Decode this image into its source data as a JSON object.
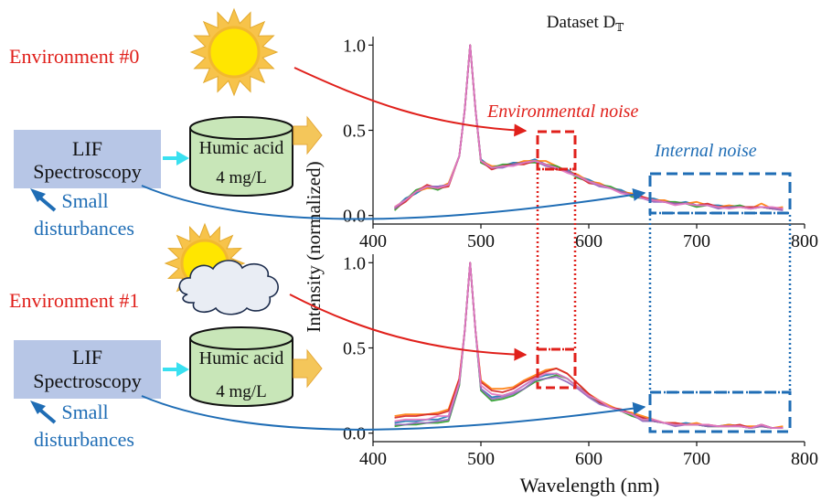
{
  "title": "Dataset D",
  "title_subscript": "𝕋",
  "environments": [
    {
      "label": "Environment #0",
      "source_icon": "sun-icon",
      "instrument": {
        "line1": "LIF",
        "line2": "Spectroscopy"
      },
      "disturbance": {
        "line1": "Small",
        "line2": "disturbances"
      },
      "sample": {
        "name": "Humic acid",
        "concentration": "4 mg/L"
      }
    },
    {
      "label": "Environment #1",
      "source_icon": "sun-behind-cloud-icon",
      "instrument": {
        "line1": "LIF",
        "line2": "Spectroscopy"
      },
      "disturbance": {
        "line1": "Small",
        "line2": "disturbances"
      },
      "sample": {
        "name": "Humic acid",
        "concentration": "4 mg/L"
      }
    }
  ],
  "annotations": {
    "environmental_noise": "Environmental noise",
    "internal_noise": "Internal noise"
  },
  "colors": {
    "env_red": "#e0201b",
    "blue": "#1f6db5",
    "box_fill": "#b7c6e6",
    "can_fill": "#c8e6b8",
    "arrow_cyan": "#39e0f0",
    "arrow_gold": "#f4c65a",
    "sun": "#ffe600",
    "sun_rays": "#f7c34a"
  },
  "chart_data": [
    {
      "type": "line",
      "panel": "top",
      "xlabel": "Wavelength (nm)",
      "ylabel": "Intensity (normalized)",
      "xlim": [
        400,
        800
      ],
      "ylim": [
        -0.05,
        1.05
      ],
      "xticks": [
        "400",
        "500",
        "600",
        "700",
        "800"
      ],
      "yticks": [
        "0.0",
        "0.5",
        "1.0"
      ],
      "x": [
        420,
        430,
        440,
        450,
        460,
        470,
        480,
        485,
        490,
        495,
        500,
        510,
        520,
        530,
        540,
        550,
        560,
        570,
        580,
        590,
        600,
        610,
        620,
        630,
        640,
        650,
        660,
        670,
        680,
        690,
        700,
        710,
        720,
        730,
        740,
        750,
        760,
        770,
        780
      ],
      "base": [
        0.04,
        0.09,
        0.14,
        0.17,
        0.16,
        0.18,
        0.35,
        0.62,
        1.0,
        0.62,
        0.32,
        0.28,
        0.29,
        0.3,
        0.31,
        0.32,
        0.3,
        0.28,
        0.26,
        0.23,
        0.2,
        0.18,
        0.16,
        0.14,
        0.12,
        0.1,
        0.09,
        0.08,
        0.07,
        0.07,
        0.06,
        0.06,
        0.05,
        0.05,
        0.05,
        0.04,
        0.05,
        0.04,
        0.04
      ],
      "series": [
        {
          "color": "#1f77b4",
          "offsets": [
            0.0,
            0.01,
            -0.01,
            0.0,
            0.01,
            0.0,
            0.0,
            0.0,
            0.0,
            0.0,
            0.01,
            0.0,
            0.0,
            0.01,
            0.0,
            0.01,
            0.0,
            0.0,
            0.01,
            0.0,
            0.01,
            0.0,
            0.0,
            0.01,
            0.0,
            0.0,
            0.01,
            0.0,
            0.0,
            0.01,
            0.0,
            0.0,
            0.01,
            0.0,
            0.0,
            0.01,
            0.0,
            0.0,
            0.0
          ]
        },
        {
          "color": "#ff7f0e",
          "offsets": [
            0.01,
            0.0,
            0.0,
            -0.01,
            0.0,
            0.01,
            0.0,
            0.0,
            0.0,
            0.0,
            0.0,
            0.01,
            0.0,
            0.0,
            0.01,
            0.0,
            0.02,
            0.01,
            0.0,
            0.01,
            0.0,
            0.01,
            0.0,
            0.0,
            0.01,
            0.0,
            0.0,
            0.01,
            0.0,
            0.0,
            0.02,
            0.0,
            0.0,
            0.01,
            0.0,
            0.0,
            0.02,
            0.0,
            0.01
          ]
        },
        {
          "color": "#2ca02c",
          "offsets": [
            -0.01,
            0.0,
            0.01,
            0.0,
            -0.01,
            0.0,
            0.0,
            0.0,
            0.0,
            0.0,
            -0.01,
            0.0,
            0.01,
            0.0,
            0.0,
            -0.01,
            0.0,
            0.01,
            0.0,
            -0.01,
            0.0,
            0.0,
            0.01,
            0.0,
            -0.01,
            0.0,
            0.0,
            0.0,
            0.01,
            0.0,
            -0.01,
            0.0,
            0.0,
            0.0,
            0.01,
            0.0,
            0.0,
            0.0,
            0.0
          ]
        },
        {
          "color": "#d62728",
          "offsets": [
            0.0,
            -0.01,
            0.0,
            0.01,
            0.0,
            -0.01,
            0.0,
            0.0,
            0.0,
            0.0,
            0.0,
            -0.01,
            0.0,
            0.0,
            -0.01,
            0.0,
            0.0,
            -0.01,
            0.0,
            0.0,
            -0.01,
            0.0,
            0.0,
            0.0,
            0.0,
            0.01,
            0.0,
            0.0,
            0.0,
            0.0,
            0.0,
            0.01,
            0.0,
            0.0,
            0.0,
            0.01,
            0.0,
            0.0,
            0.0
          ]
        },
        {
          "color": "#9467bd",
          "offsets": [
            0.0,
            0.0,
            0.0,
            0.0,
            0.01,
            0.0,
            0.0,
            0.0,
            0.0,
            0.0,
            0.0,
            0.0,
            -0.01,
            0.0,
            0.0,
            0.0,
            -0.01,
            0.0,
            0.0,
            0.0,
            0.0,
            -0.01,
            0.0,
            0.0,
            0.0,
            0.0,
            -0.01,
            0.0,
            0.0,
            0.0,
            0.0,
            0.0,
            -0.01,
            0.0,
            0.0,
            0.0,
            0.0,
            0.0,
            -0.01
          ]
        },
        {
          "color": "#e377c2",
          "offsets": [
            0.01,
            0.0,
            0.0,
            0.0,
            0.0,
            0.0,
            0.0,
            0.0,
            0.0,
            0.0,
            0.0,
            0.0,
            0.0,
            -0.01,
            0.0,
            0.0,
            0.0,
            0.0,
            -0.01,
            0.0,
            0.0,
            0.0,
            0.0,
            -0.01,
            0.0,
            0.0,
            0.0,
            0.0,
            -0.01,
            0.0,
            0.0,
            0.0,
            0.0,
            -0.01,
            0.0,
            0.0,
            0.0,
            0.01,
            0.0
          ]
        }
      ]
    },
    {
      "type": "line",
      "panel": "bottom",
      "xlabel": "Wavelength (nm)",
      "ylabel": "Intensity (normalized)",
      "xlim": [
        400,
        800
      ],
      "ylim": [
        -0.05,
        1.05
      ],
      "xticks": [
        "400",
        "500",
        "600",
        "700",
        "800"
      ],
      "yticks": [
        "0.0",
        "0.5",
        "1.0"
      ],
      "x": [
        420,
        430,
        440,
        450,
        460,
        470,
        480,
        485,
        490,
        495,
        500,
        510,
        520,
        530,
        540,
        550,
        560,
        570,
        580,
        590,
        600,
        610,
        620,
        630,
        640,
        650,
        660,
        670,
        680,
        690,
        700,
        710,
        720,
        730,
        740,
        750,
        760,
        770,
        780
      ],
      "base": [
        0.07,
        0.07,
        0.08,
        0.08,
        0.09,
        0.1,
        0.3,
        0.6,
        1.0,
        0.6,
        0.28,
        0.22,
        0.22,
        0.24,
        0.28,
        0.32,
        0.34,
        0.35,
        0.32,
        0.27,
        0.22,
        0.18,
        0.15,
        0.13,
        0.11,
        0.08,
        0.07,
        0.06,
        0.05,
        0.05,
        0.05,
        0.04,
        0.04,
        0.04,
        0.04,
        0.03,
        0.04,
        0.03,
        0.03
      ],
      "series": [
        {
          "color": "#1f77b4",
          "offsets": [
            -0.01,
            0.0,
            -0.01,
            0.0,
            -0.01,
            0.0,
            0.0,
            0.0,
            0.0,
            0.0,
            -0.02,
            -0.01,
            0.0,
            0.0,
            0.0,
            0.0,
            0.0,
            0.0,
            0.0,
            0.0,
            0.01,
            0.0,
            0.0,
            0.0,
            0.0,
            0.01,
            0.0,
            0.0,
            0.0,
            0.01,
            0.0,
            0.0,
            0.0,
            0.01,
            0.0,
            0.0,
            0.01,
            0.0,
            0.0
          ]
        },
        {
          "color": "#ff7f0e",
          "offsets": [
            0.03,
            0.04,
            0.03,
            0.03,
            0.03,
            0.04,
            0.02,
            0.0,
            0.0,
            0.0,
            0.03,
            0.04,
            0.04,
            0.03,
            0.03,
            0.02,
            0.03,
            0.03,
            0.03,
            0.02,
            0.01,
            0.01,
            0.01,
            0.0,
            0.01,
            0.02,
            0.01,
            0.0,
            0.01,
            0.0,
            0.01,
            0.0,
            0.0,
            0.01,
            0.0,
            0.01,
            0.0,
            0.0,
            0.01
          ]
        },
        {
          "color": "#2ca02c",
          "offsets": [
            -0.03,
            -0.02,
            -0.03,
            -0.02,
            -0.03,
            -0.03,
            -0.02,
            0.0,
            0.0,
            0.0,
            -0.03,
            -0.03,
            -0.02,
            -0.02,
            -0.02,
            -0.02,
            -0.02,
            -0.01,
            0.0,
            0.0,
            0.0,
            0.0,
            0.0,
            0.0,
            -0.01,
            0.0,
            0.0,
            0.0,
            0.0,
            0.0,
            0.0,
            0.0,
            0.0,
            0.0,
            0.0,
            0.0,
            0.0,
            0.0,
            0.0
          ]
        },
        {
          "color": "#d62728",
          "offsets": [
            0.02,
            0.03,
            0.02,
            0.03,
            0.02,
            0.03,
            0.02,
            0.0,
            0.0,
            0.0,
            0.02,
            0.03,
            0.02,
            0.02,
            0.02,
            0.01,
            0.02,
            0.03,
            0.03,
            0.02,
            0.01,
            0.0,
            0.0,
            0.01,
            0.0,
            0.01,
            0.0,
            0.0,
            0.01,
            0.0,
            0.0,
            0.01,
            0.0,
            0.0,
            0.01,
            0.0,
            0.01,
            0.0,
            0.0
          ]
        },
        {
          "color": "#9467bd",
          "offsets": [
            -0.02,
            -0.02,
            -0.02,
            -0.02,
            -0.02,
            -0.02,
            -0.01,
            0.0,
            0.0,
            0.0,
            -0.02,
            -0.02,
            -0.01,
            -0.01,
            -0.02,
            -0.01,
            -0.02,
            -0.02,
            -0.02,
            -0.01,
            -0.01,
            -0.01,
            0.0,
            0.0,
            0.0,
            -0.01,
            0.0,
            0.0,
            -0.01,
            0.0,
            0.0,
            0.0,
            0.0,
            0.0,
            0.0,
            0.0,
            0.0,
            0.0,
            0.0
          ]
        },
        {
          "color": "#e377c2",
          "offsets": [
            0.0,
            0.01,
            0.0,
            0.0,
            0.01,
            0.0,
            0.0,
            0.0,
            0.0,
            0.0,
            0.0,
            0.01,
            0.0,
            0.0,
            0.0,
            0.0,
            0.01,
            0.0,
            0.0,
            0.0,
            0.0,
            0.01,
            0.0,
            0.0,
            0.0,
            0.0,
            0.01,
            0.0,
            0.0,
            0.0,
            0.0,
            0.01,
            0.0,
            0.0,
            0.0,
            0.0,
            0.01,
            0.0,
            0.0
          ]
        }
      ]
    }
  ]
}
